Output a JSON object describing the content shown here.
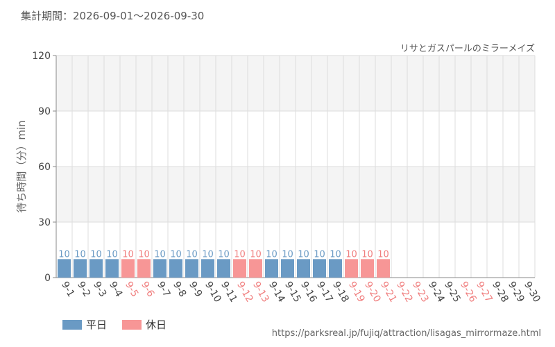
{
  "header": {
    "period_label": "集計期間：2026-09-01～2026-09-30"
  },
  "footer": {
    "source_url": "https://parksreal.jp/fujiq/attraction/lisagas_mirrormaze.html"
  },
  "colors": {
    "weekday": "#6a9ac4",
    "holiday": "#f79696",
    "holiday_label": "#f07e7e",
    "band": "#f4f4f4",
    "grid": "#dddddd"
  },
  "chart_data": {
    "type": "bar",
    "title": "リサとガスパールのミラーメイズ",
    "xlabel": "",
    "ylabel": "待ち時間（分）min",
    "ylim": [
      0,
      120
    ],
    "yticks": [
      0,
      30,
      60,
      90,
      120
    ],
    "grid": true,
    "legend_position": "bottom-left",
    "legend": [
      {
        "label": "平日",
        "kind": "weekday"
      },
      {
        "label": "休日",
        "kind": "holiday"
      }
    ],
    "categories": [
      "9-1",
      "9-2",
      "9-3",
      "9-4",
      "9-5",
      "9-6",
      "9-7",
      "9-8",
      "9-9",
      "9-10",
      "9-11",
      "9-12",
      "9-13",
      "9-14",
      "9-15",
      "9-16",
      "9-17",
      "9-18",
      "9-19",
      "9-20",
      "9-21",
      "9-22",
      "9-23",
      "9-24",
      "9-25",
      "9-26",
      "9-27",
      "9-28",
      "9-29",
      "9-30"
    ],
    "day_type": [
      "weekday",
      "weekday",
      "weekday",
      "weekday",
      "holiday",
      "holiday",
      "weekday",
      "weekday",
      "weekday",
      "weekday",
      "weekday",
      "holiday",
      "holiday",
      "weekday",
      "weekday",
      "weekday",
      "weekday",
      "weekday",
      "holiday",
      "holiday",
      "holiday",
      "holiday",
      "holiday",
      "weekday",
      "weekday",
      "holiday",
      "holiday",
      "weekday",
      "weekday",
      "weekday"
    ],
    "values": [
      10,
      10,
      10,
      10,
      10,
      10,
      10,
      10,
      10,
      10,
      10,
      10,
      10,
      10,
      10,
      10,
      10,
      10,
      10,
      10,
      10,
      null,
      null,
      null,
      null,
      null,
      null,
      null,
      null,
      null
    ]
  }
}
